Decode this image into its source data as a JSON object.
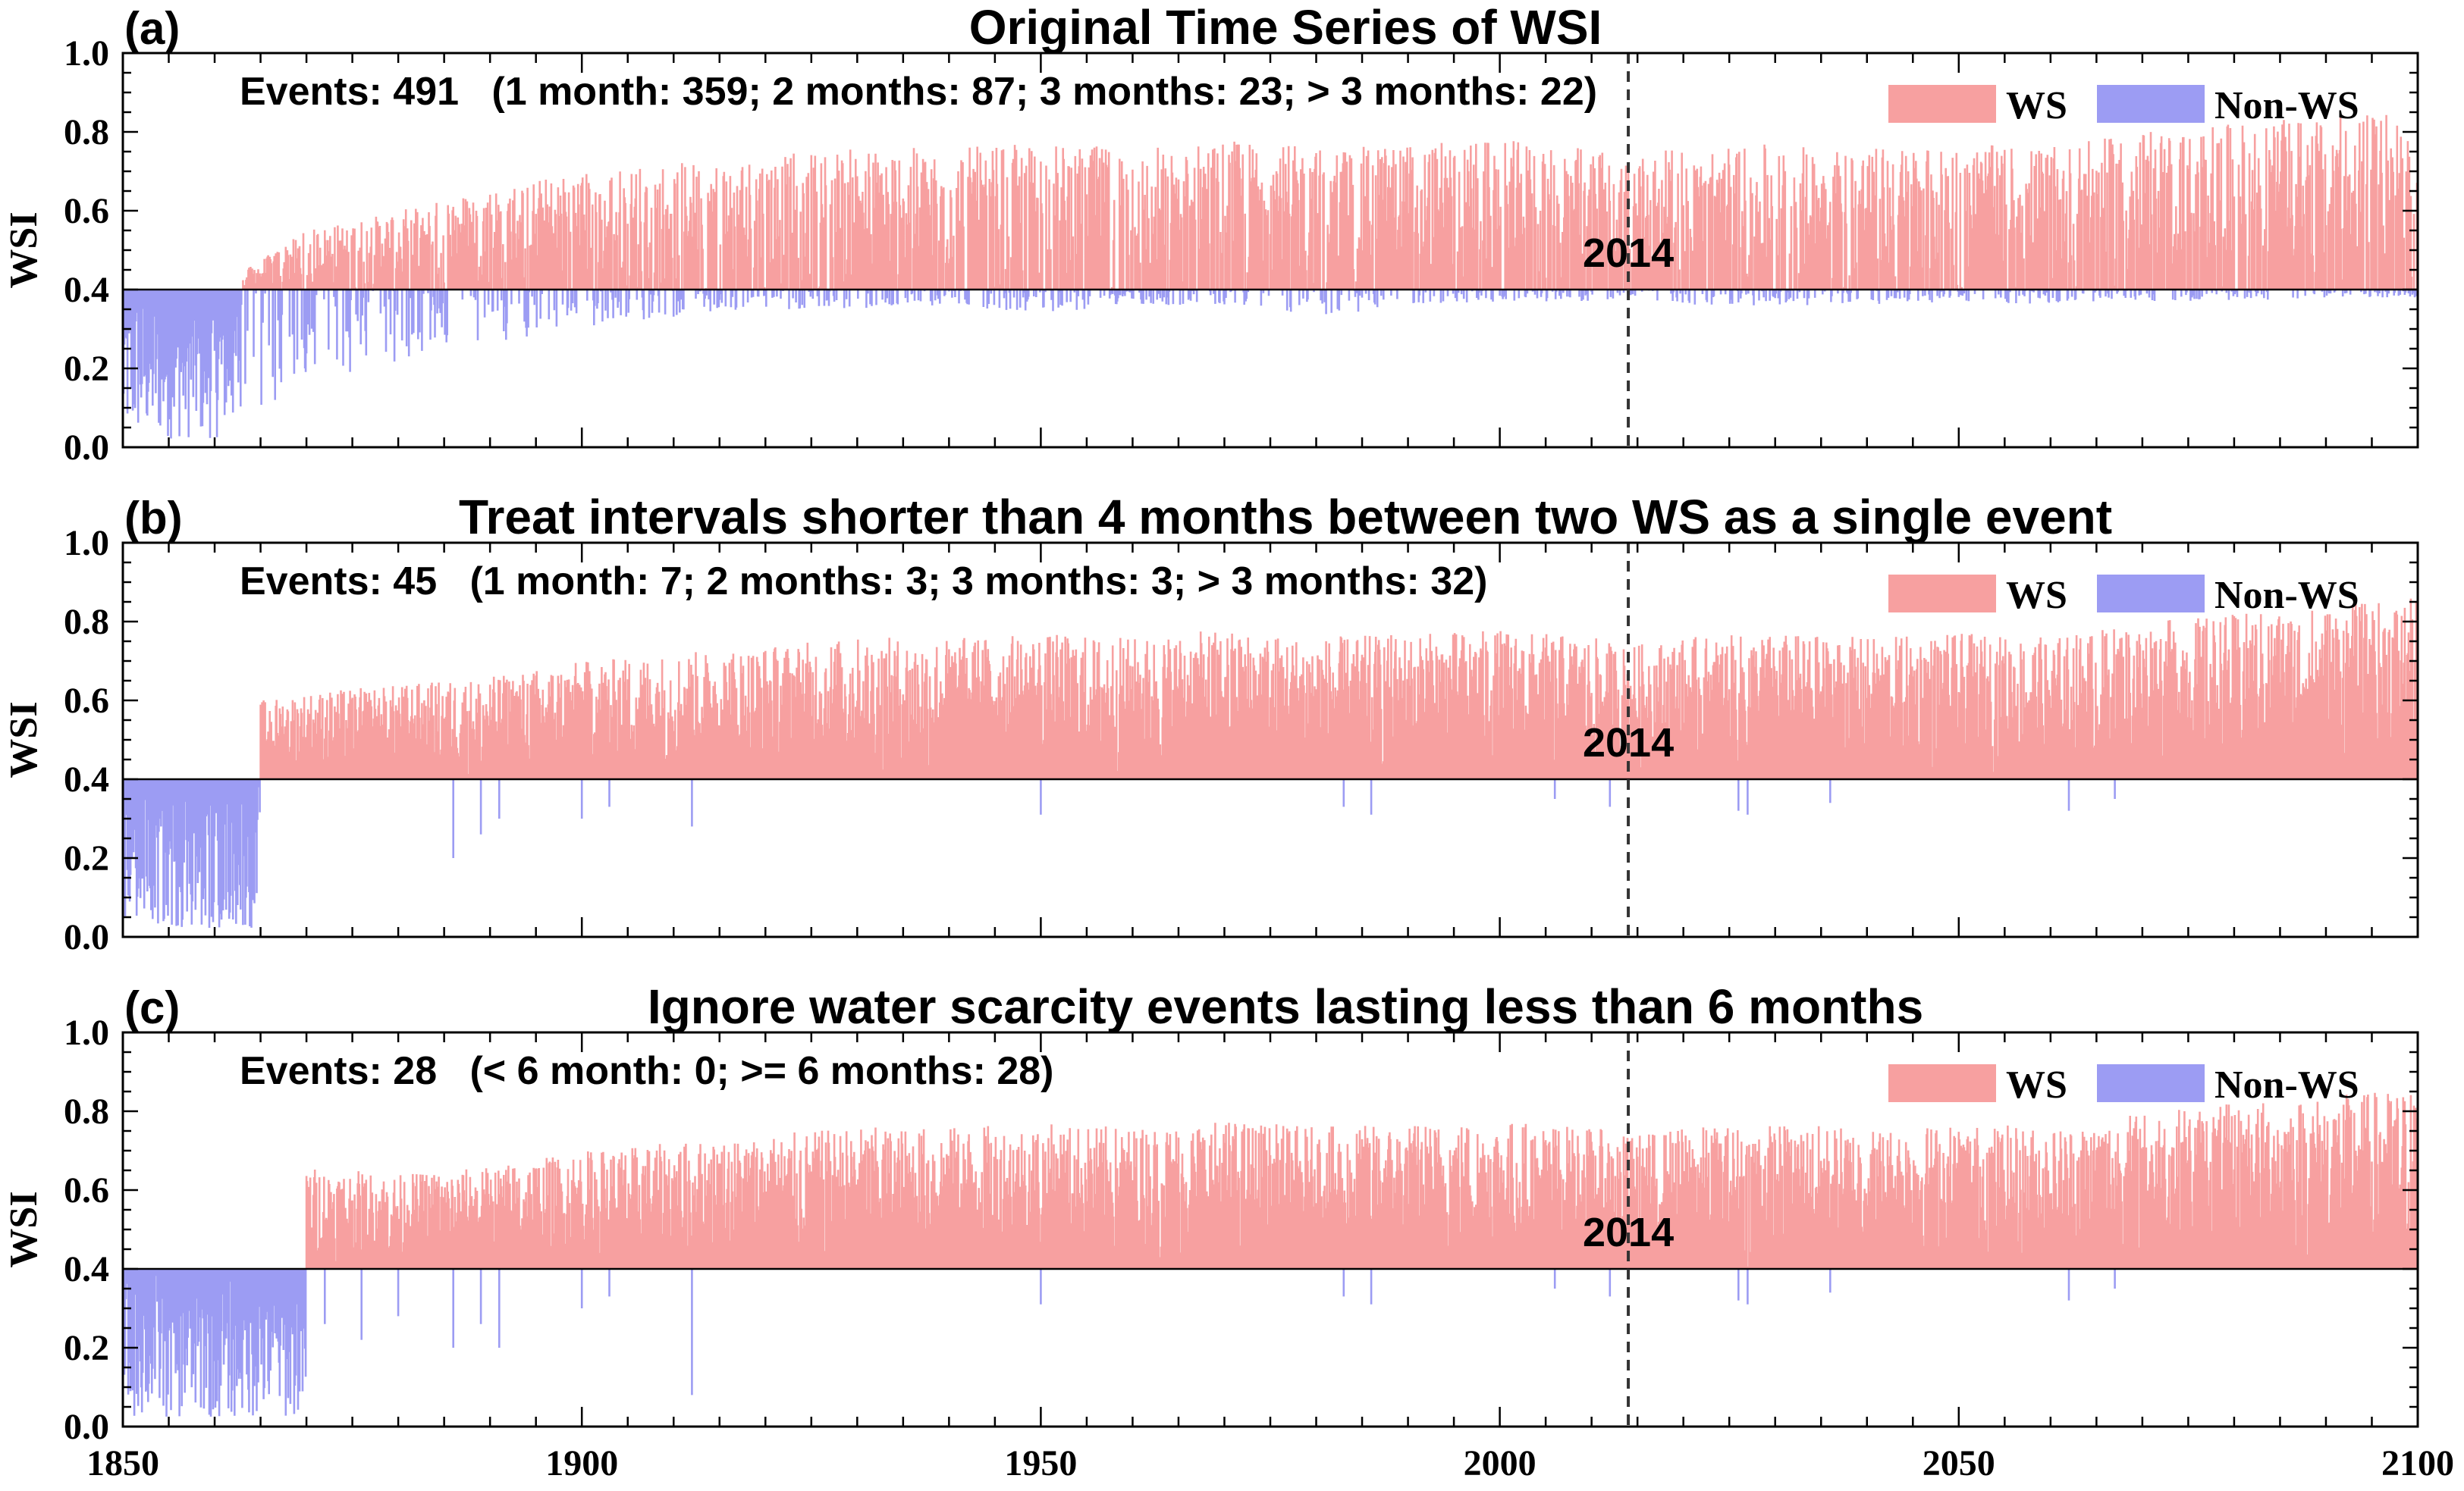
{
  "figure": {
    "x_ticks": [
      "1850",
      "1900",
      "1950",
      "2000",
      "2050",
      "2100"
    ],
    "y_ticks": [
      "0.0",
      "0.2",
      "0.4",
      "0.6",
      "0.8",
      "1.0"
    ]
  },
  "chart_data": [
    {
      "type": "area",
      "panel_label": "(a)",
      "title": "Original Time Series of WSI",
      "annotation": "Events: 491   (1 month: 359; 2 months: 87; 3 months: 23; > 3 months: 22)",
      "xlabel": "",
      "ylabel": "WSI",
      "xlim": [
        1850,
        2100
      ],
      "ylim": [
        0.0,
        1.0
      ],
      "threshold": 0.4,
      "vline": {
        "x": 2014,
        "label": "2014"
      },
      "grid": false,
      "legend_position": "top-right",
      "series": [
        {
          "name": "WS",
          "color": "#f7a0a0"
        },
        {
          "name": "Non-WS",
          "color": "#9c9cf3"
        }
      ],
      "envelope": {
        "x": [
          1850,
          1860,
          1870,
          1880,
          1890,
          1900,
          1910,
          1920,
          1930,
          1940,
          1950,
          1960,
          1970,
          1980,
          1990,
          2000,
          2010,
          2014,
          2020,
          2030,
          2040,
          2050,
          2060,
          2070,
          2080,
          2090,
          2100
        ],
        "ws_peak": [
          0.4,
          0.4,
          0.55,
          0.6,
          0.66,
          0.7,
          0.72,
          0.74,
          0.76,
          0.76,
          0.77,
          0.76,
          0.78,
          0.76,
          0.77,
          0.78,
          0.76,
          0.74,
          0.76,
          0.77,
          0.76,
          0.77,
          0.76,
          0.8,
          0.82,
          0.84,
          0.86
        ],
        "nonws_min": [
          0.02,
          0.02,
          0.15,
          0.22,
          0.26,
          0.3,
          0.33,
          0.35,
          0.35,
          0.36,
          0.34,
          0.36,
          0.36,
          0.33,
          0.36,
          0.37,
          0.37,
          0.38,
          0.36,
          0.36,
          0.36,
          0.37,
          0.36,
          0.37,
          0.37,
          0.38,
          0.38
        ]
      }
    },
    {
      "type": "area",
      "panel_label": "(b)",
      "title": "Treat intervals shorter than 4 months between two WS as a single event",
      "annotation": "Events: 45   (1 month: 7; 2 months: 3; 3 months: 3; > 3 months: 32)",
      "xlabel": "",
      "ylabel": "WSI",
      "xlim": [
        1850,
        2100
      ],
      "ylim": [
        0.0,
        1.0
      ],
      "threshold": 0.4,
      "vline": {
        "x": 2014,
        "label": "2014"
      },
      "grid": false,
      "legend_position": "top-right",
      "series": [
        {
          "name": "WS",
          "color": "#f7a0a0"
        },
        {
          "name": "Non-WS",
          "color": "#9c9cf3"
        }
      ],
      "envelope": {
        "x": [
          1850,
          1860,
          1865,
          1870,
          1880,
          1890,
          1900,
          1910,
          1920,
          1930,
          1940,
          1950,
          1960,
          1970,
          1980,
          1990,
          2000,
          2010,
          2014,
          2020,
          2030,
          2040,
          2050,
          2060,
          2070,
          2080,
          2090,
          2100
        ],
        "ws_peak": [
          0.4,
          0.4,
          0.6,
          0.62,
          0.64,
          0.66,
          0.7,
          0.72,
          0.74,
          0.76,
          0.76,
          0.77,
          0.76,
          0.78,
          0.76,
          0.77,
          0.78,
          0.76,
          0.74,
          0.76,
          0.77,
          0.76,
          0.77,
          0.76,
          0.8,
          0.82,
          0.84,
          0.86
        ],
        "nonws_dips": [
          [
            1886,
            0.2
          ],
          [
            1889,
            0.26
          ],
          [
            1891,
            0.3
          ],
          [
            1900,
            0.3
          ],
          [
            1903,
            0.33
          ],
          [
            1912,
            0.28
          ],
          [
            1950,
            0.31
          ],
          [
            1983,
            0.33
          ],
          [
            1986,
            0.31
          ],
          [
            2006,
            0.35
          ],
          [
            2012,
            0.33
          ],
          [
            2026,
            0.32
          ],
          [
            2027,
            0.31
          ],
          [
            2036,
            0.34
          ],
          [
            2062,
            0.32
          ],
          [
            2067,
            0.35
          ]
        ]
      }
    },
    {
      "type": "area",
      "panel_label": "(c)",
      "title": "Ignore water scarcity events lasting less than 6 months",
      "annotation": "Events: 28   (< 6 month: 0; >= 6 months: 28)",
      "xlabel": "",
      "ylabel": "WSI",
      "xlim": [
        1850,
        2100
      ],
      "ylim": [
        0.0,
        1.0
      ],
      "threshold": 0.4,
      "vline": {
        "x": 2014,
        "label": "2014"
      },
      "grid": false,
      "legend_position": "top-right",
      "series": [
        {
          "name": "WS",
          "color": "#f7a0a0"
        },
        {
          "name": "Non-WS",
          "color": "#9c9cf3"
        }
      ],
      "envelope": {
        "x": [
          1850,
          1869,
          1870,
          1880,
          1890,
          1900,
          1910,
          1920,
          1930,
          1940,
          1950,
          1960,
          1970,
          1980,
          1990,
          2000,
          2010,
          2014,
          2020,
          2030,
          2040,
          2050,
          2060,
          2070,
          2080,
          2090,
          2100
        ],
        "ws_peak": [
          0.4,
          0.4,
          0.66,
          0.64,
          0.66,
          0.7,
          0.72,
          0.74,
          0.76,
          0.76,
          0.77,
          0.76,
          0.78,
          0.76,
          0.77,
          0.78,
          0.76,
          0.74,
          0.76,
          0.77,
          0.76,
          0.77,
          0.76,
          0.8,
          0.82,
          0.84,
          0.86
        ],
        "nonws_dips": [
          [
            1872,
            0.26
          ],
          [
            1876,
            0.22
          ],
          [
            1880,
            0.28
          ],
          [
            1886,
            0.2
          ],
          [
            1889,
            0.26
          ],
          [
            1891,
            0.2
          ],
          [
            1900,
            0.3
          ],
          [
            1903,
            0.33
          ],
          [
            1912,
            0.08
          ],
          [
            1950,
            0.31
          ],
          [
            1983,
            0.33
          ],
          [
            1986,
            0.31
          ],
          [
            2006,
            0.35
          ],
          [
            2012,
            0.33
          ],
          [
            2026,
            0.32
          ],
          [
            2027,
            0.31
          ],
          [
            2036,
            0.34
          ],
          [
            2062,
            0.32
          ],
          [
            2067,
            0.35
          ]
        ]
      }
    }
  ]
}
